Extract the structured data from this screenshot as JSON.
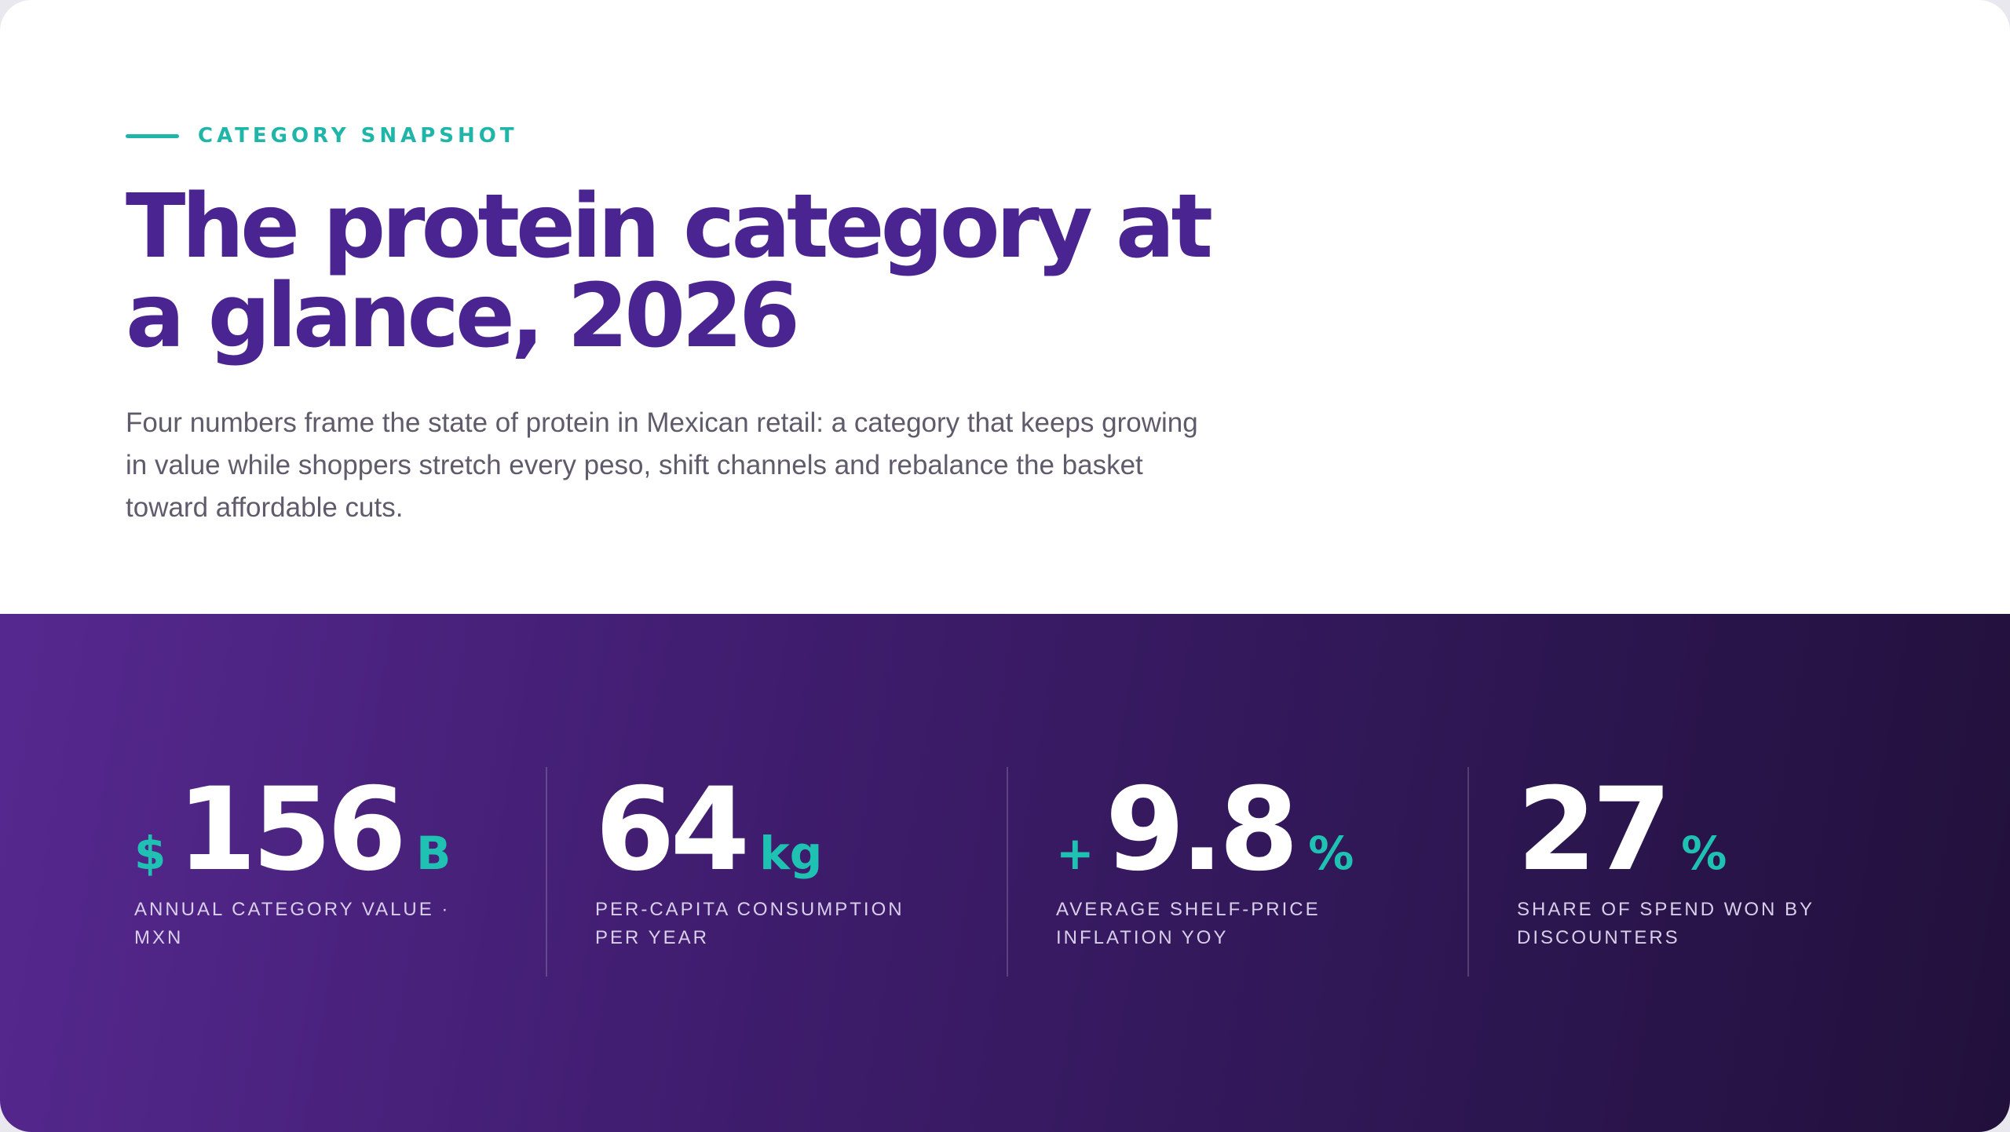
{
  "eyebrow": "CATEGORY SNAPSHOT",
  "title": "The protein category at a glance, 2026",
  "description": "Four numbers frame the state of protein in Mexican retail: a category that keeps growing in value while shoppers stretch every peso, shift channels and rebalance the basket toward affordable cuts.",
  "stats": [
    {
      "prefix": "$",
      "value": "156",
      "unit": "B",
      "label": "ANNUAL CATEGORY VALUE · MXN"
    },
    {
      "value": "64",
      "unit": "kg",
      "label": "PER-CAPITA CONSUMPTION PER YEAR"
    },
    {
      "prefix": "+",
      "value": "9.8",
      "unit": "%",
      "label": "AVERAGE SHELF-PRICE INFLATION YOY"
    },
    {
      "value": "27",
      "unit": "%",
      "label": "SHARE OF SPEND WON BY DISCOUNTERS"
    }
  ]
}
